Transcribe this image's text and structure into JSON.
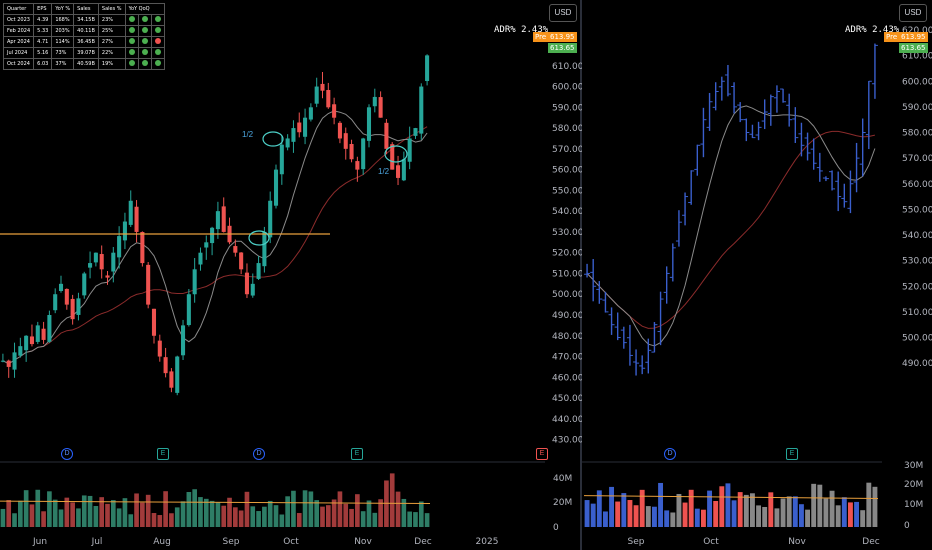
{
  "left_chart": {
    "currency": "USD",
    "adr_label": "ADR% 2.43%",
    "pre_label": "Pre",
    "pre_price": "613.95",
    "last_price": "613.65",
    "price_ticks": [
      "610.00",
      "600.00",
      "590.00",
      "580.00",
      "570.00",
      "560.00",
      "550.00",
      "540.00",
      "530.00",
      "520.00",
      "510.00",
      "500.00",
      "490.00",
      "480.00",
      "470.00",
      "460.00",
      "450.00",
      "440.00",
      "430.00"
    ],
    "volume_ticks": [
      "40M",
      "20M",
      "0"
    ],
    "date_ticks": [
      "Jun",
      "Jul",
      "Aug",
      "Sep",
      "Oct",
      "Nov",
      "Dec",
      "2025"
    ],
    "annotation_a": "1/2",
    "annotation_b": "1/2",
    "events": [
      "D",
      "E",
      "D",
      "E",
      "E"
    ]
  },
  "right_chart": {
    "currency": "USD",
    "adr_label": "ADR% 2.43%",
    "pre_label": "Pre",
    "pre_price": "613.95",
    "last_price": "613.65",
    "price_ticks": [
      "620.00",
      "610.00",
      "600.00",
      "590.00",
      "580.00",
      "570.00",
      "560.00",
      "550.00",
      "540.00",
      "530.00",
      "520.00",
      "510.00",
      "500.00",
      "490.00"
    ],
    "volume_ticks": [
      "30M",
      "20M",
      "10M",
      "0"
    ],
    "date_ticks": [
      "Sep",
      "Oct",
      "Nov",
      "Dec"
    ],
    "events": [
      "D",
      "E"
    ]
  },
  "earnings_table": {
    "headers": [
      "Quarter",
      "EPS",
      "YoY %",
      "Sales",
      "Sales %",
      "YoY QoQ"
    ],
    "rows": [
      {
        "q": "Oct 2023",
        "eps": "4.39",
        "yoy": "168%",
        "sales": "34.15B",
        "sales_pct": "23%",
        "d1": "#4caf50",
        "d2": "#4caf50",
        "d3": "#4caf50"
      },
      {
        "q": "Feb 2024",
        "eps": "5.33",
        "yoy": "203%",
        "sales": "40.11B",
        "sales_pct": "25%",
        "d1": "#4caf50",
        "d2": "#4caf50",
        "d3": "#4caf50"
      },
      {
        "q": "Apr 2024",
        "eps": "4.71",
        "yoy": "114%",
        "sales": "36.45B",
        "sales_pct": "27%",
        "d1": "#4caf50",
        "d2": "#4caf50",
        "d3": "#ef5350"
      },
      {
        "q": "Jul 2024",
        "eps": "5.16",
        "yoy": "73%",
        "sales": "39.07B",
        "sales_pct": "22%",
        "d1": "#4caf50",
        "d2": "#4caf50",
        "d3": "#4caf50"
      },
      {
        "q": "Oct 2024",
        "eps": "6.03",
        "yoy": "37%",
        "sales": "40.59B",
        "sales_pct": "19%",
        "d1": "#4caf50",
        "d2": "#4caf50",
        "d3": "#4caf50"
      }
    ]
  },
  "colors": {
    "up": "#26a69a",
    "up_bright": "#4caf50",
    "down": "#ef5350",
    "bar_blue": "#3a5fcd",
    "ma_short": "#8a8a8a",
    "ma_long": "#8b2b2b",
    "hline": "#e89f3c",
    "circle": "#4dd0c8"
  },
  "chart_data": [
    {
      "type": "candlestick",
      "title": "",
      "ylim": [
        425,
        620
      ],
      "x_range": [
        "Jun",
        "2025"
      ],
      "horizontal_line": 529,
      "notes": "daily candles, approx close path",
      "close": [
        468,
        465,
        472,
        475,
        480,
        476,
        485,
        478,
        490,
        500,
        505,
        495,
        488,
        498,
        510,
        515,
        520,
        512,
        508,
        520,
        528,
        535,
        545,
        530,
        515,
        495,
        480,
        470,
        462,
        455,
        470,
        485,
        500,
        512,
        520,
        525,
        532,
        540,
        530,
        525,
        520,
        512,
        500,
        505,
        515,
        530,
        545,
        560,
        572,
        575,
        580,
        578,
        585,
        590,
        600,
        598,
        590,
        585,
        575,
        570,
        565,
        560,
        575,
        590,
        595,
        585,
        570,
        560,
        556,
        565,
        575,
        580,
        600,
        615
      ]
    },
    {
      "type": "bar",
      "title": "",
      "ylim": [
        460,
        620
      ],
      "x_range": [
        "Aug",
        "Dec"
      ],
      "notes": "OHLC bars, approx close path",
      "close": [
        525,
        520,
        515,
        510,
        505,
        500,
        498,
        493,
        490,
        488,
        495,
        505,
        515,
        525,
        535,
        545,
        555,
        565,
        575,
        585,
        592,
        596,
        600,
        595,
        590,
        585,
        580,
        578,
        582,
        588,
        594,
        596,
        592,
        585,
        578,
        575,
        572,
        568,
        565,
        562,
        558,
        555,
        553,
        560,
        570,
        580,
        600,
        614
      ]
    }
  ]
}
